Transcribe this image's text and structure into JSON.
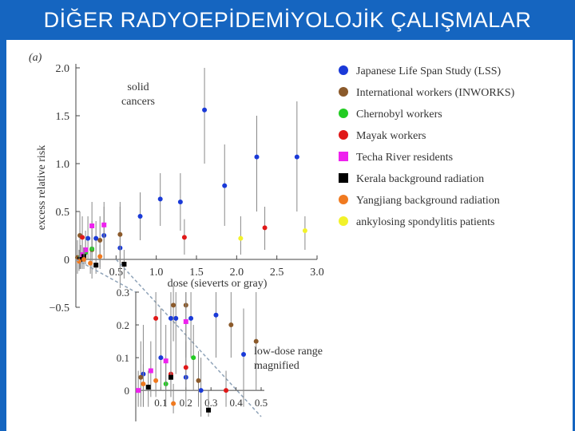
{
  "slide": {
    "title": "DİĞER RADYOEPİDEMİYOLOJİK ÇALIŞMALAR"
  },
  "chart_data": [
    {
      "type": "scatter",
      "title": "",
      "panel_label": "(a)",
      "annotation": [
        "solid",
        "cancers"
      ],
      "xlabel": "dose (sieverts or gray)",
      "ylabel": "excess relative risk",
      "xlim": [
        0,
        3.0
      ],
      "ylim": [
        -0.5,
        2.0
      ],
      "xticks": [
        "0.5",
        "1.0",
        "1.5",
        "2.0",
        "2.5",
        "3.0"
      ],
      "yticks": [
        "−0.5",
        "0",
        "0.5",
        "1.0",
        "1.5",
        "2.0"
      ],
      "legend_position": "right",
      "series": [
        {
          "name": "Japanese Life Span Study (LSS)",
          "color": "#1a3ad8",
          "marker": "circle",
          "points": [
            [
              0.15,
              0.22,
              0.0,
              0.45
            ],
            [
              0.25,
              0.22,
              0.05,
              0.4
            ],
            [
              0.35,
              0.25,
              0.0,
              0.55
            ],
            [
              0.55,
              0.12,
              -0.3,
              0.55
            ],
            [
              0.8,
              0.45,
              0.2,
              0.7
            ],
            [
              1.05,
              0.63,
              0.35,
              0.9
            ],
            [
              1.3,
              0.6,
              0.3,
              0.9
            ],
            [
              1.6,
              1.56,
              1.0,
              2.0
            ],
            [
              1.85,
              0.77,
              0.35,
              1.2
            ],
            [
              2.25,
              1.07,
              0.5,
              1.5
            ],
            [
              2.75,
              1.07,
              0.5,
              1.65
            ]
          ]
        },
        {
          "name": "International workers (INWORKS)",
          "color": "#8b5a2b",
          "marker": "circle",
          "points": [
            [
              0.02,
              0.02,
              -0.15,
              0.2
            ],
            [
              0.05,
              0.25,
              0.0,
              0.5
            ],
            [
              0.2,
              0.1,
              -0.2,
              0.4
            ],
            [
              0.3,
              0.2,
              -0.1,
              0.45
            ],
            [
              0.55,
              0.26,
              -0.1,
              0.6
            ]
          ]
        },
        {
          "name": "Chernobyl workers",
          "color": "#22cc22",
          "marker": "circle",
          "points": [
            [
              0.06,
              0.03,
              -0.1,
              0.15
            ],
            [
              0.12,
              0.07,
              -0.05,
              0.2
            ],
            [
              0.2,
              0.11,
              0.0,
              0.25
            ]
          ]
        },
        {
          "name": "Mayak workers",
          "color": "#e01818",
          "marker": "circle",
          "points": [
            [
              0.08,
              0.23,
              0.05,
              0.45
            ],
            [
              1.35,
              0.23,
              0.05,
              0.42
            ],
            [
              2.35,
              0.33,
              0.1,
              0.55
            ]
          ]
        },
        {
          "name": "Techa River residents",
          "color": "#ee22ee",
          "marker": "square",
          "points": [
            [
              0.08,
              0.05,
              -0.1,
              0.2
            ],
            [
              0.12,
              0.1,
              -0.05,
              0.3
            ],
            [
              0.2,
              0.35,
              0.1,
              0.6
            ],
            [
              0.35,
              0.36,
              0.1,
              0.6
            ]
          ]
        },
        {
          "name": "Kerala background radiation",
          "color": "#000000",
          "marker": "square",
          "points": [
            [
              0.05,
              0.0,
              -0.1,
              0.1
            ],
            [
              0.1,
              0.03,
              -0.05,
              0.12
            ],
            [
              0.25,
              -0.06,
              -0.15,
              0.05
            ],
            [
              0.6,
              -0.05,
              -0.2,
              0.1
            ]
          ]
        },
        {
          "name": "Yangjiang background radiation",
          "color": "#f07a20",
          "marker": "circle",
          "points": [
            [
              0.04,
              -0.02,
              -0.12,
              0.1
            ],
            [
              0.1,
              0.0,
              -0.1,
              0.1
            ],
            [
              0.18,
              -0.04,
              -0.15,
              0.08
            ],
            [
              0.3,
              0.03,
              -0.08,
              0.15
            ]
          ]
        },
        {
          "name": "ankylosing spondylitis patients",
          "color": "#f2f22a",
          "marker": "circle",
          "points": [
            [
              2.05,
              0.22,
              0.05,
              0.45
            ],
            [
              2.85,
              0.3,
              0.1,
              0.45
            ]
          ]
        }
      ]
    },
    {
      "type": "scatter",
      "title": "",
      "annotation": [
        "low-dose range",
        "magnified"
      ],
      "xlim": [
        0,
        0.5
      ],
      "ylim": [
        -0.08,
        0.3
      ],
      "xticks": [
        "0",
        "0.1",
        "0.2",
        "0.3",
        "0.4",
        "0.5"
      ],
      "yticks": [
        "0",
        "0.1",
        "0.2",
        "0.3"
      ],
      "series": [
        {
          "name": "Japanese Life Span Study (LSS)",
          "color": "#1a3ad8",
          "marker": "circle",
          "points": [
            [
              0.03,
              0.05,
              -0.05,
              0.2
            ],
            [
              0.1,
              0.1,
              0.0,
              0.25
            ],
            [
              0.14,
              0.22,
              0.1,
              0.3
            ],
            [
              0.16,
              0.22,
              0.05,
              0.3
            ],
            [
              0.2,
              0.04,
              -0.05,
              0.15
            ],
            [
              0.22,
              0.22,
              0.1,
              0.3
            ],
            [
              0.26,
              0.0,
              -0.08,
              0.1
            ],
            [
              0.32,
              0.23,
              0.1,
              0.3
            ],
            [
              0.43,
              0.11,
              -0.05,
              0.25
            ]
          ]
        },
        {
          "name": "International workers (INWORKS)",
          "color": "#8b5a2b",
          "marker": "circle",
          "points": [
            [
              0.02,
              0.04,
              -0.05,
              0.15
            ],
            [
              0.15,
              0.26,
              0.15,
              0.32
            ],
            [
              0.2,
              0.26,
              0.15,
              0.3
            ],
            [
              0.25,
              0.03,
              -0.05,
              0.12
            ],
            [
              0.38,
              0.2,
              0.1,
              0.3
            ],
            [
              0.48,
              0.15,
              0.0,
              0.3
            ]
          ]
        },
        {
          "name": "Chernobyl workers",
          "color": "#22cc22",
          "marker": "circle",
          "points": [
            [
              0.12,
              0.02,
              -0.05,
              0.1
            ],
            [
              0.23,
              0.1,
              0.0,
              0.2
            ]
          ]
        },
        {
          "name": "Mayak workers",
          "color": "#e01818",
          "marker": "circle",
          "points": [
            [
              0.08,
              0.22,
              0.1,
              0.3
            ],
            [
              0.14,
              0.05,
              -0.02,
              0.15
            ],
            [
              0.2,
              0.07,
              0.0,
              0.15
            ],
            [
              0.36,
              0.0,
              -0.05,
              0.06
            ]
          ]
        },
        {
          "name": "Techa River residents",
          "color": "#ee22ee",
          "marker": "square",
          "points": [
            [
              0.01,
              0.0,
              -0.05,
              0.06
            ],
            [
              0.06,
              0.06,
              -0.02,
              0.15
            ],
            [
              0.12,
              0.09,
              0.0,
              0.2
            ],
            [
              0.2,
              0.21,
              0.1,
              0.3
            ]
          ]
        },
        {
          "name": "Kerala background radiation",
          "color": "#000000",
          "marker": "square",
          "points": [
            [
              0.05,
              0.01,
              -0.05,
              0.06
            ],
            [
              0.14,
              0.04,
              -0.02,
              0.1
            ],
            [
              0.29,
              -0.06,
              -0.08,
              0.0
            ]
          ]
        },
        {
          "name": "Yangjiang background radiation",
          "color": "#f07a20",
          "marker": "circle",
          "points": [
            [
              0.03,
              0.02,
              -0.05,
              0.08
            ],
            [
              0.08,
              0.03,
              -0.02,
              0.1
            ],
            [
              0.15,
              -0.04,
              -0.07,
              0.02
            ]
          ]
        }
      ]
    }
  ]
}
